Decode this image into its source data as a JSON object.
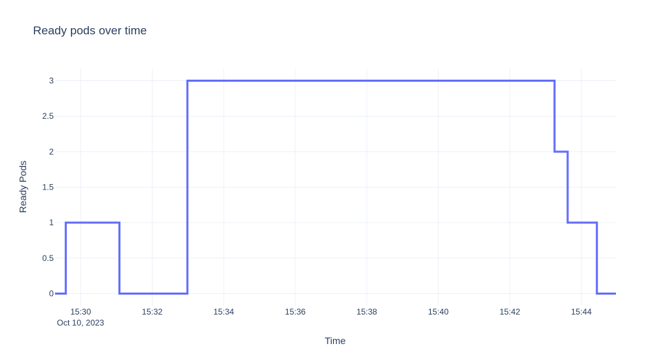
{
  "chart_data": {
    "type": "line",
    "line_shape": "step",
    "title": "Ready pods over time",
    "xlabel": "Time",
    "ylabel": "Ready Pods",
    "date_label": "Oct 10, 2023",
    "x_ticks": [
      "15:30",
      "15:32",
      "15:34",
      "15:36",
      "15:38",
      "15:40",
      "15:42",
      "15:44"
    ],
    "y_ticks": [
      "0",
      "0.5",
      "1",
      "1.5",
      "2",
      "2.5",
      "3"
    ],
    "xlim": [
      "15:29:17",
      "15:44:58"
    ],
    "ylim": [
      -0.17,
      3.17
    ],
    "grid": true,
    "color": "#636efa",
    "series": [
      {
        "x": [
          "15:29:17",
          "15:29:35",
          "15:31:05",
          "15:32:59",
          "15:43:15",
          "15:43:37",
          "15:44:26",
          "15:44:58"
        ],
        "y": [
          0,
          1,
          0,
          3,
          2,
          1,
          0,
          0
        ]
      }
    ]
  }
}
